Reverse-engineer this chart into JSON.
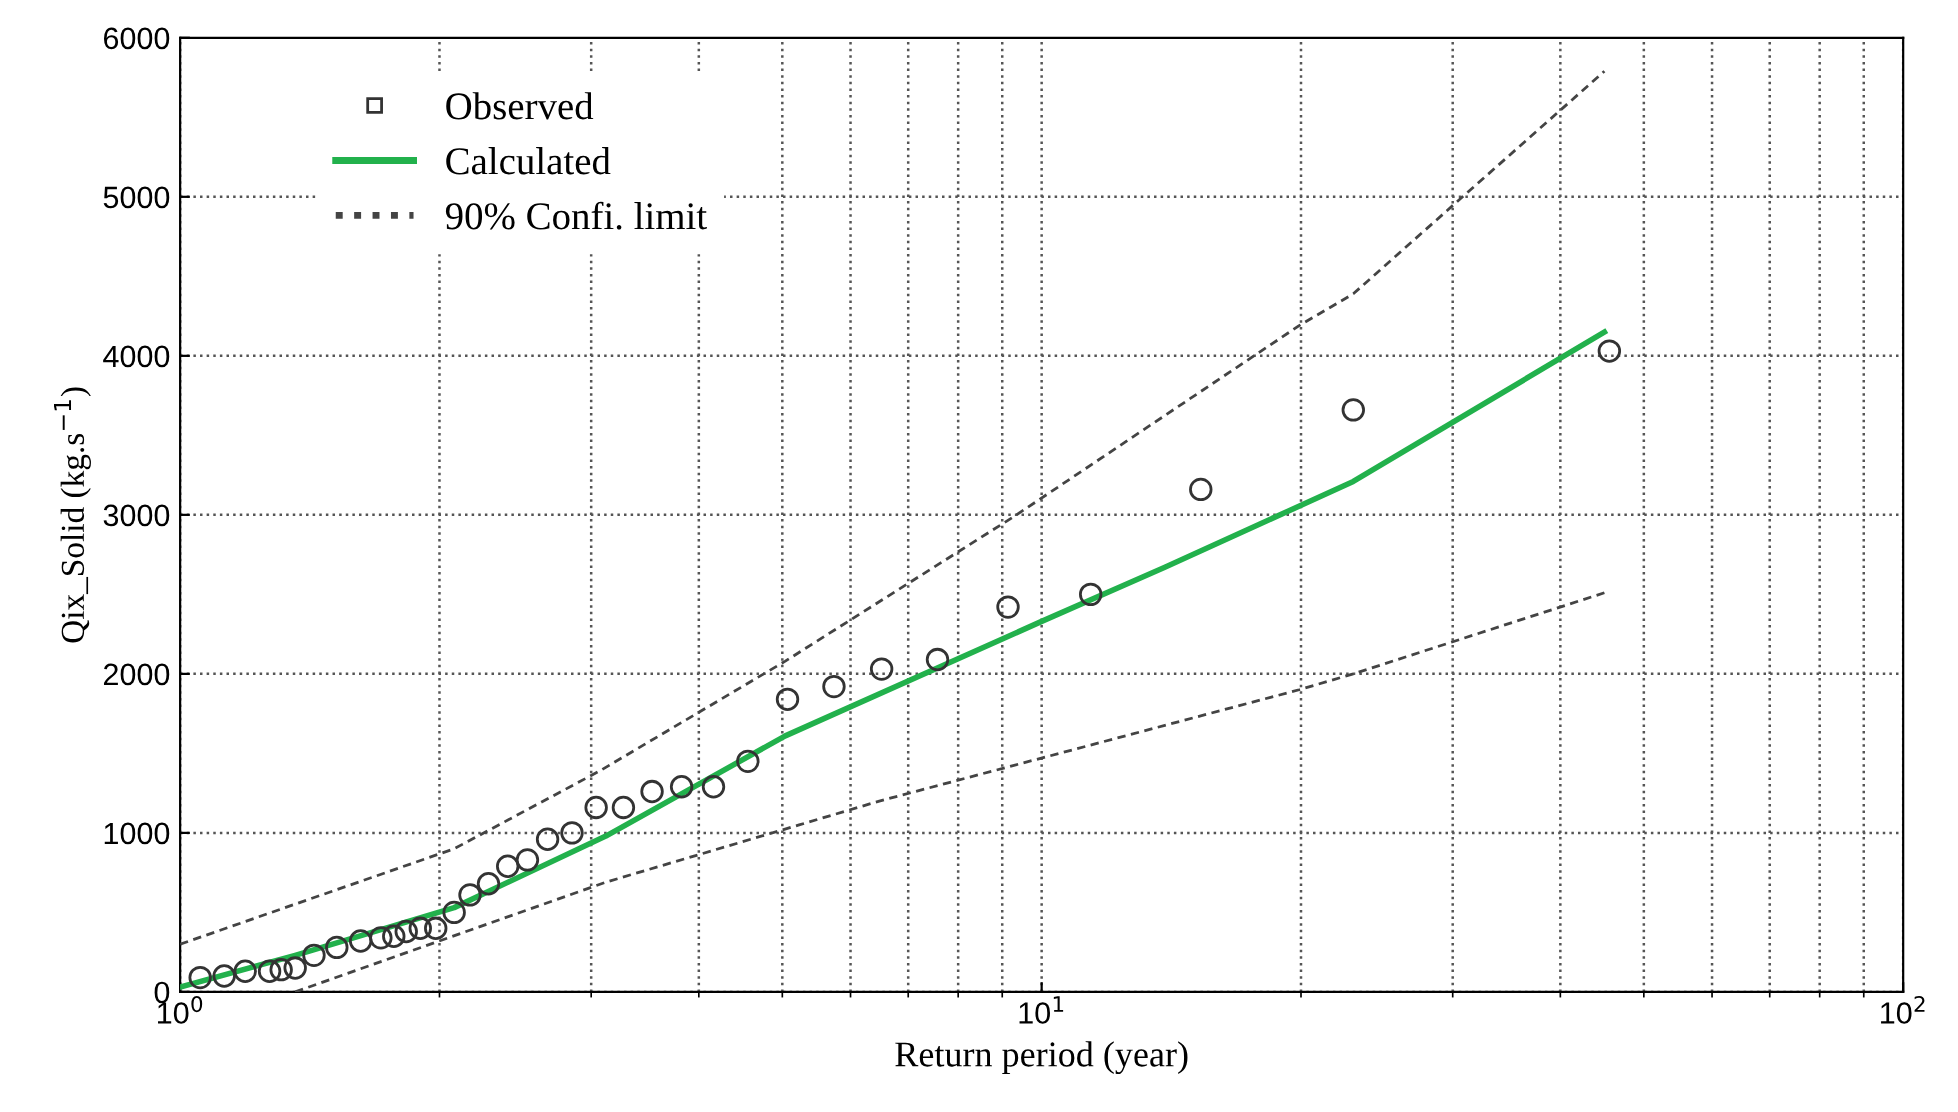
{
  "chart_data": {
    "type": "scatter",
    "xlabel": "Return period (year)",
    "ylabel": "Qix_Solid (kg.s$^{−1}$)",
    "log": "x",
    "xlim": [
      1,
      100
    ],
    "xticks": [
      {
        "value": 1,
        "label": "10$^{0}$"
      },
      {
        "value": 10,
        "label": "10$^{1}$"
      },
      {
        "value": 100,
        "label": "10$^{2}$"
      }
    ],
    "ylim": [
      0,
      6000
    ],
    "yticks": [
      0,
      1000,
      2000,
      3000,
      4000,
      5000,
      6000
    ],
    "grid": true,
    "legend": "top left",
    "series": [
      {
        "name": "Observed",
        "marker": "circle",
        "color": "#333333",
        "x": [
          1.055,
          1.125,
          1.19,
          1.27,
          1.31,
          1.36,
          1.43,
          1.52,
          1.62,
          1.71,
          1.77,
          1.83,
          1.9,
          1.98,
          2.08,
          2.17,
          2.28,
          2.4,
          2.53,
          2.67,
          2.85,
          3.04,
          3.27,
          3.53,
          3.82,
          4.16,
          4.56,
          5.07,
          5.74,
          6.52,
          7.57,
          9.14,
          11.4,
          15.3,
          23.0,
          45.6
        ],
        "values": [
          90,
          100,
          130,
          130,
          140,
          150,
          230,
          280,
          320,
          340,
          350,
          380,
          400,
          400,
          500,
          610,
          680,
          790,
          830,
          960,
          1000,
          1160,
          1160,
          1260,
          1290,
          1290,
          1450,
          1840,
          1920,
          2030,
          2090,
          2420,
          2500,
          3160,
          3660,
          4030
        ]
      },
      {
        "name": "Calculated",
        "type": "line",
        "line_style": "solid",
        "color": "#22b14c",
        "x": [
          1,
          1.36,
          2.08,
          3.12,
          5.04,
          10,
          13.9,
          23.0,
          45.0
        ],
        "values": [
          30,
          230,
          530,
          980,
          1610,
          2330,
          2670,
          3210,
          4150
        ]
      },
      {
        "name": "90% Confi. limit",
        "type": "line",
        "line_style": "dashed",
        "color": "#444444",
        "x": [
          1,
          2.08,
          3.07,
          5.04,
          9.29,
          19.9,
          23.0,
          30.8,
          45.0
        ],
        "values": [
          300,
          900,
          1390,
          2080,
          2990,
          4190,
          4390,
          5000,
          5790
        ]
      },
      {
        "type": "line",
        "line_style": "dashed",
        "color": "#444444",
        "x": [
          1.36,
          3.12,
          5.23,
          6.48,
          19.9,
          23.0,
          45.0
        ],
        "values": [
          0,
          690,
          1050,
          1200,
          1900,
          2000,
          2510
        ]
      }
    ]
  }
}
